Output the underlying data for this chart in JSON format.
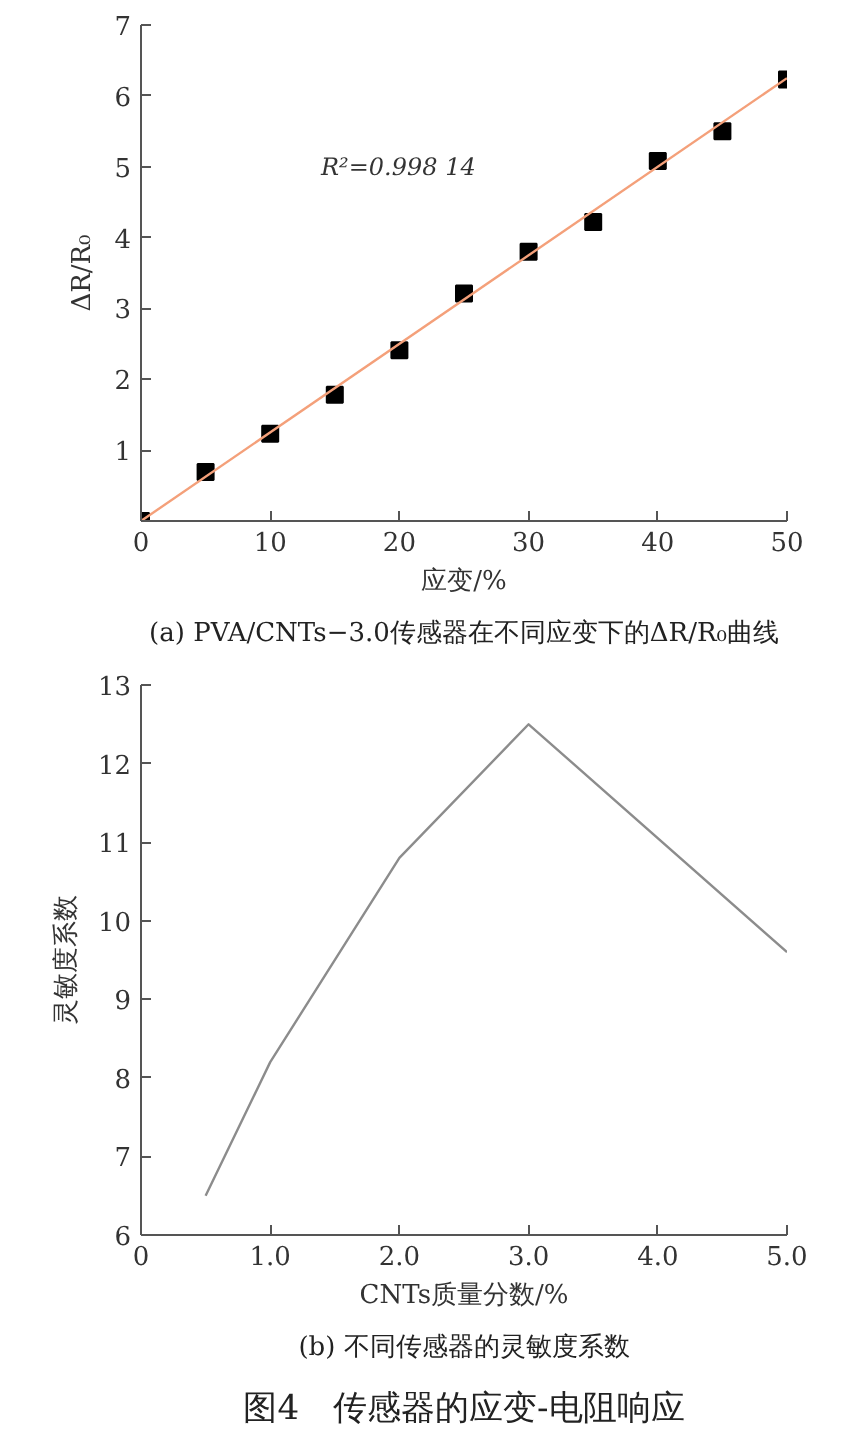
{
  "chart_data": [
    {
      "type": "scatter",
      "title": "(a) PVA/CNTs−3.0传感器在不同应变下的ΔR/R₀曲线",
      "xlabel": "应变/%",
      "ylabel": "ΔR/R₀",
      "series": [
        {
          "type": "scatter",
          "color": "#000000",
          "marker": "square",
          "x": [
            0,
            5,
            10,
            15,
            20,
            25,
            30,
            35,
            40,
            45,
            50
          ],
          "values": [
            0,
            0.69,
            1.23,
            1.78,
            2.41,
            3.21,
            3.8,
            4.22,
            5.08,
            5.5,
            6.23
          ]
        },
        {
          "type": "line",
          "color": "#f4a07a",
          "line_style": "solid",
          "x": [
            0,
            50
          ],
          "values": [
            0,
            6.25
          ]
        }
      ],
      "annotations": [
        "R²=0.998 14"
      ],
      "xlim": [
        0,
        50
      ],
      "ylim": [
        0,
        7
      ],
      "xticks": [
        0,
        10,
        20,
        30,
        40,
        50
      ],
      "yticks": [
        1,
        2,
        3,
        4,
        5,
        6,
        7
      ],
      "grid": false
    },
    {
      "type": "line",
      "title": "(b) 不同传感器的灵敏度系数",
      "xlabel": "CNTs质量分数/%",
      "ylabel": "灵敏度系数",
      "series": [
        {
          "color": "#8c8c8c",
          "x": [
            0.5,
            1.0,
            2.0,
            3.0,
            5.0
          ],
          "values": [
            6.5,
            8.2,
            10.8,
            12.5,
            9.6
          ]
        }
      ],
      "annotations": [
        "图4　传感器的应变-电阻响应"
      ],
      "line_style": "solid",
      "marker": "none",
      "xlim": [
        0,
        5
      ],
      "ylim": [
        6,
        13
      ],
      "xticks": [
        0,
        {
          "value": 1,
          "label": "1.0"
        },
        {
          "value": 2,
          "label": "2.0"
        },
        {
          "value": 3,
          "label": "3.0"
        },
        {
          "value": 4,
          "label": "4.0"
        },
        {
          "value": 5,
          "label": "5.0"
        }
      ],
      "yticks": [
        6,
        7,
        8,
        9,
        10,
        11,
        12,
        13
      ],
      "grid": false
    }
  ]
}
